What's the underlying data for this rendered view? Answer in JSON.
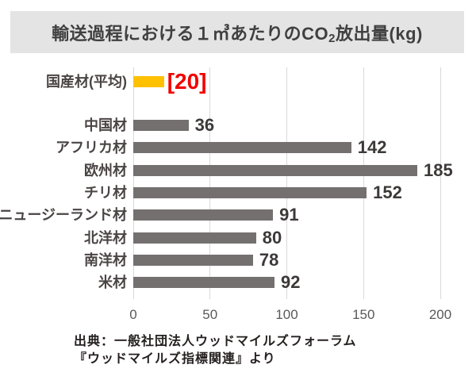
{
  "title": {
    "pre": "輸送過程における１㎥あたりのCO",
    "sub": "2",
    "post": "放出量(kg)"
  },
  "source": {
    "line1": "出典：一般社団法人ウッドマイルズフォーラム",
    "line2": "『ウッドマイルズ指標関連』より"
  },
  "colors": {
    "title_bar_bg": "#e4e4e4",
    "title_text": "#404040",
    "bar_default": "#757070",
    "bar_highlight": "#ffc000",
    "value_text": "#3d3939",
    "value_highlight_text": "#f20000",
    "category_text": "#4b4444",
    "tick_text": "#595959",
    "gridline": "#d9d9d9"
  },
  "chart_data": {
    "type": "bar",
    "orientation": "horizontal",
    "title": "輸送過程における１㎥あたりのCO2放出量(kg)",
    "categories": [
      "国産材(平均)",
      "中国材",
      "アフリカ材",
      "欧州材",
      "チリ材",
      "ニュージーランド材",
      "北洋材",
      "南洋材",
      "米材"
    ],
    "values": [
      20,
      36,
      142,
      185,
      152,
      91,
      80,
      78,
      92
    ],
    "value_labels": [
      "[20]",
      "36",
      "142",
      "185",
      "152",
      "91",
      "80",
      "78",
      "92"
    ],
    "highlight_index": 0,
    "xlabel": "",
    "ylabel": "",
    "xlim": [
      0,
      200
    ],
    "x_ticks": [
      0,
      50,
      100,
      150,
      200
    ],
    "grid": true,
    "legend": "none"
  }
}
